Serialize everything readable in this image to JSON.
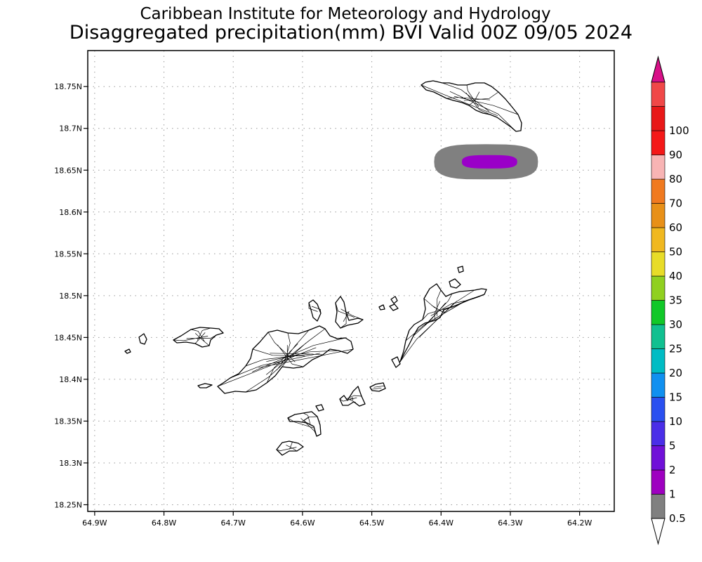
{
  "header": {
    "institute": "Caribbean Institute for Meteorology and Hydrology",
    "product": "Disaggregated precipitation(mm) BVI Valid 00Z 09/05 2024"
  },
  "map": {
    "lon_range": [
      -64.91,
      -64.15
    ],
    "lat_range": [
      18.242,
      18.793
    ],
    "lon_ticks": [
      {
        "value": -64.9,
        "label": "64.9W"
      },
      {
        "value": -64.8,
        "label": "64.8W"
      },
      {
        "value": -64.7,
        "label": "64.7W"
      },
      {
        "value": -64.6,
        "label": "64.6W"
      },
      {
        "value": -64.5,
        "label": "64.5W"
      },
      {
        "value": -64.4,
        "label": "64.4W"
      },
      {
        "value": -64.3,
        "label": "64.3W"
      },
      {
        "value": -64.2,
        "label": "64.2W"
      }
    ],
    "lat_ticks": [
      {
        "value": 18.75,
        "label": "18.75N"
      },
      {
        "value": 18.7,
        "label": "18.7N"
      },
      {
        "value": 18.65,
        "label": "18.65N"
      },
      {
        "value": 18.6,
        "label": "18.6N"
      },
      {
        "value": 18.55,
        "label": "18.55N"
      },
      {
        "value": 18.5,
        "label": "18.5N"
      },
      {
        "value": 18.45,
        "label": "18.45N"
      },
      {
        "value": 18.4,
        "label": "18.4N"
      },
      {
        "value": 18.35,
        "label": "18.35N"
      },
      {
        "value": 18.3,
        "label": "18.3N"
      },
      {
        "value": 18.25,
        "label": "18.25N"
      }
    ],
    "grid": true,
    "precip_areas": [
      {
        "range_mm": "0.5-1",
        "color": "#808080",
        "center_lon": -64.335,
        "center_lat": 18.66,
        "half_width_lon": 0.075,
        "half_height_lat": 0.021
      },
      {
        "range_mm": "1-2",
        "color": "#9a00c8",
        "center_lon": -64.33,
        "center_lat": 18.66,
        "half_width_lon": 0.04,
        "half_height_lat": 0.008
      }
    ]
  },
  "colorbar": {
    "colors": [
      "#808080",
      "#9e00c0",
      "#7010d8",
      "#4a2ee8",
      "#2a50f0",
      "#1090f0",
      "#00bcc4",
      "#10c090",
      "#10c828",
      "#90d020",
      "#e8dc28",
      "#f0b820",
      "#e89018",
      "#f07a20",
      "#f8b4b4",
      "#f41818",
      "#e81818",
      "#f04848"
    ],
    "top_color": "#d81088",
    "bottom_color": "#ffffff",
    "labels": [
      "0.5",
      "1",
      "2",
      "5",
      "10",
      "15",
      "20",
      "25",
      "30",
      "35",
      "40",
      "50",
      "60",
      "70",
      "80",
      "90",
      "100"
    ]
  }
}
